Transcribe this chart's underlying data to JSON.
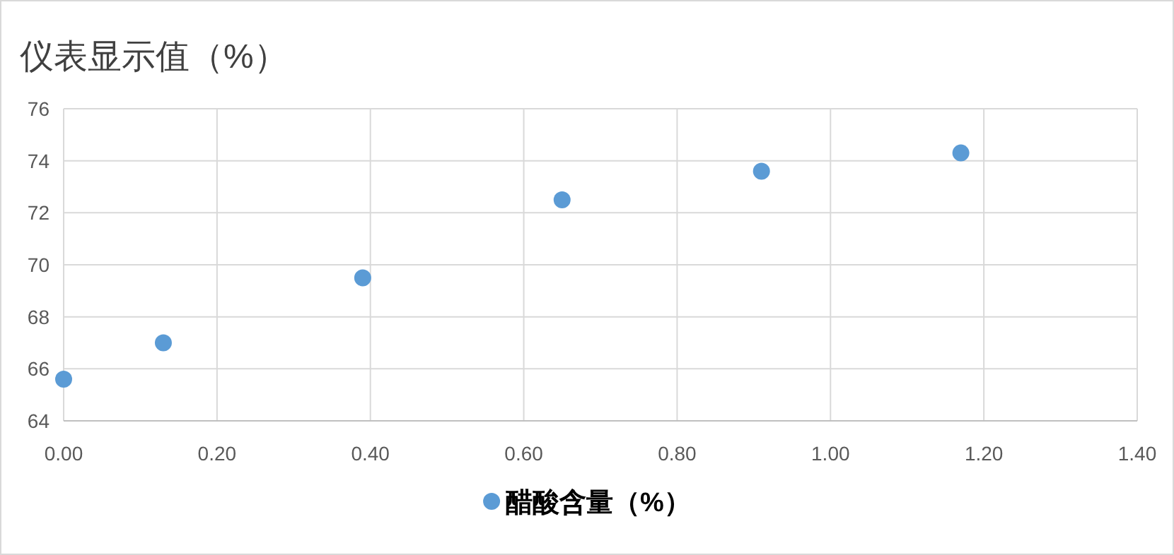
{
  "chart_data": {
    "type": "scatter",
    "title": "仪表显示值（%）",
    "x": [
      0,
      0.13,
      0.39,
      0.65,
      0.91,
      1.17
    ],
    "series": [
      {
        "name": "醋酸含量（%）",
        "color": "#5b9bd5",
        "values": [
          65.6,
          67.0,
          69.5,
          72.5,
          73.6,
          74.3
        ]
      }
    ],
    "xlim": [
      0,
      1.4
    ],
    "ylim": [
      64,
      76
    ],
    "xticks": [
      {
        "value": 0,
        "label": "0.00"
      },
      {
        "value": 0.2,
        "label": "0.20"
      },
      {
        "value": 0.4,
        "label": "0.40"
      },
      {
        "value": 0.6,
        "label": "0.60"
      },
      {
        "value": 0.8,
        "label": "0.80"
      },
      {
        "value": 1.0,
        "label": "1.00"
      },
      {
        "value": 1.2,
        "label": "1.20"
      },
      {
        "value": 1.4,
        "label": "1.40"
      }
    ],
    "yticks": [
      64,
      66,
      68,
      70,
      72,
      74,
      76
    ],
    "grid": true,
    "legend": "bottom",
    "marker": "circle"
  }
}
